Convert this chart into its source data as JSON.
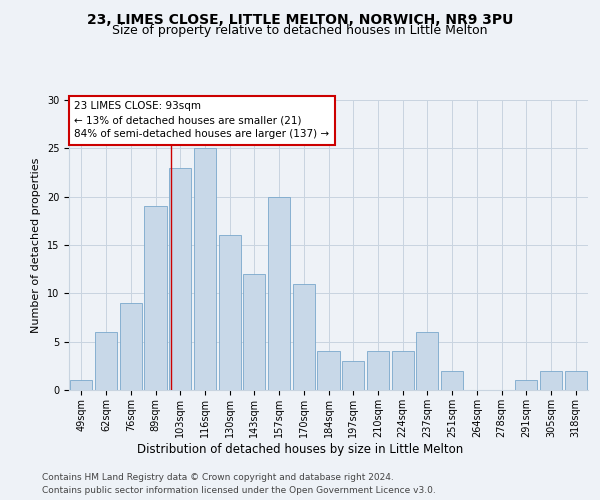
{
  "title1": "23, LIMES CLOSE, LITTLE MELTON, NORWICH, NR9 3PU",
  "title2": "Size of property relative to detached houses in Little Melton",
  "xlabel": "Distribution of detached houses by size in Little Melton",
  "ylabel": "Number of detached properties",
  "bin_labels": [
    "49sqm",
    "62sqm",
    "76sqm",
    "89sqm",
    "103sqm",
    "116sqm",
    "130sqm",
    "143sqm",
    "157sqm",
    "170sqm",
    "184sqm",
    "197sqm",
    "210sqm",
    "224sqm",
    "237sqm",
    "251sqm",
    "264sqm",
    "278sqm",
    "291sqm",
    "305sqm",
    "318sqm"
  ],
  "values": [
    1,
    6,
    9,
    19,
    23,
    25,
    16,
    12,
    20,
    11,
    4,
    3,
    4,
    4,
    6,
    2,
    0,
    0,
    1,
    2,
    2
  ],
  "bar_color": "#c8d8e8",
  "bar_edge_color": "#7aA8cc",
  "grid_color": "#c8d4e0",
  "annotation_box_text": "23 LIMES CLOSE: 93sqm\n← 13% of detached houses are smaller (21)\n84% of semi-detached houses are larger (137) →",
  "annotation_box_color": "#ffffff",
  "annotation_box_edge_color": "#cc0000",
  "red_line_x": 3.62,
  "ylim": [
    0,
    30
  ],
  "yticks": [
    0,
    5,
    10,
    15,
    20,
    25,
    30
  ],
  "footer1": "Contains HM Land Registry data © Crown copyright and database right 2024.",
  "footer2": "Contains public sector information licensed under the Open Government Licence v3.0.",
  "background_color": "#eef2f7",
  "title1_fontsize": 10,
  "title2_fontsize": 9,
  "xlabel_fontsize": 8.5,
  "ylabel_fontsize": 8,
  "tick_fontsize": 7,
  "footer_fontsize": 6.5,
  "annotation_fontsize": 7.5
}
